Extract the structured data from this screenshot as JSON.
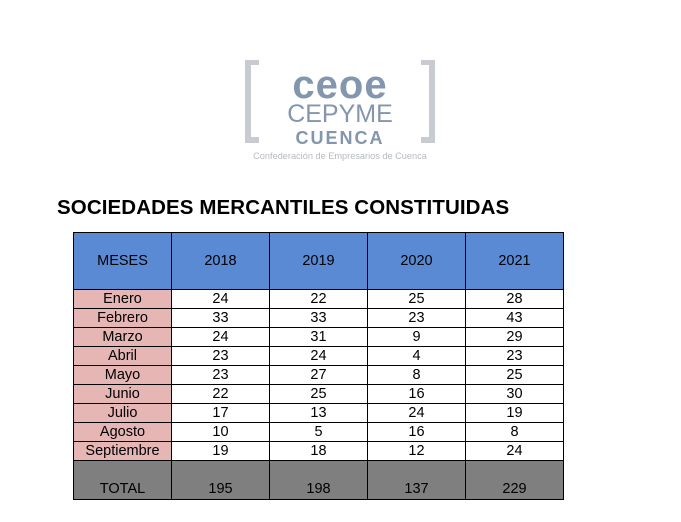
{
  "logo": {
    "line1": "ceoe",
    "line2": "CEPYME",
    "line3": "CUENCA",
    "tagline": "Confederación de Empresarios de Cuenca",
    "colors": {
      "text": "#8496ad",
      "bracket": "#c8ccd2",
      "tagline": "#b5b9bf"
    }
  },
  "title": "SOCIEDADES MERCANTILES CONSTITUIDAS",
  "colors": {
    "header_bg": "#5b8ad4",
    "month_bg": "#e6b6b5",
    "total_bg": "#7f7f7f",
    "cell_bg": "#ffffff"
  },
  "table": {
    "headers": [
      "MESES",
      "2018",
      "2019",
      "2020",
      "2021"
    ],
    "rows": [
      [
        "Enero",
        "24",
        "22",
        "25",
        "28"
      ],
      [
        "Febrero",
        "33",
        "33",
        "23",
        "43"
      ],
      [
        "Marzo",
        "24",
        "31",
        "9",
        "29"
      ],
      [
        "Abril",
        "23",
        "24",
        "4",
        "23"
      ],
      [
        "Mayo",
        "23",
        "27",
        "8",
        "25"
      ],
      [
        "Junio",
        "22",
        "25",
        "16",
        "30"
      ],
      [
        "Julio",
        "17",
        "13",
        "24",
        "19"
      ],
      [
        "Agosto",
        "10",
        "5",
        "16",
        "8"
      ],
      [
        "Septiembre",
        "19",
        "18",
        "12",
        "24"
      ]
    ],
    "total": [
      "TOTAL",
      "195",
      "198",
      "137",
      "229"
    ]
  }
}
